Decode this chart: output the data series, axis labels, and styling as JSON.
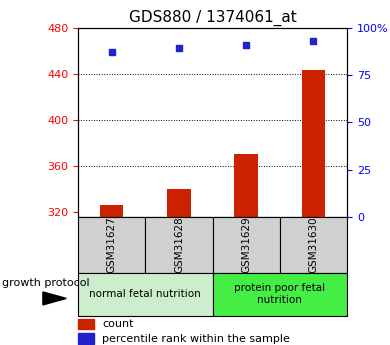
{
  "title": "GDS880 / 1374061_at",
  "samples": [
    "GSM31627",
    "GSM31628",
    "GSM31629",
    "GSM31630"
  ],
  "bar_values": [
    326,
    340,
    370,
    443
  ],
  "scatter_values": [
    87,
    89,
    91,
    93
  ],
  "ylim_left": [
    315,
    480
  ],
  "ylim_right": [
    0,
    100
  ],
  "yticks_left": [
    320,
    360,
    400,
    440,
    480
  ],
  "yticks_right": [
    0,
    25,
    50,
    75,
    100
  ],
  "yticklabels_right": [
    "0",
    "25",
    "50",
    "75",
    "100%"
  ],
  "bar_color": "#cc2200",
  "scatter_color": "#2222cc",
  "bar_bottom": 315,
  "grid_ticks": [
    360,
    400,
    440
  ],
  "group_info": [
    {
      "span": [
        0,
        2
      ],
      "label": "normal fetal nutrition",
      "color": "#cceecc"
    },
    {
      "span": [
        2,
        4
      ],
      "label": "protein poor fetal\nnutrition",
      "color": "#44ee44"
    }
  ],
  "legend_count_label": "count",
  "legend_pct_label": "percentile rank within the sample",
  "growth_protocol_label": "growth protocol",
  "title_fontsize": 11,
  "tick_fontsize": 8,
  "sample_fontsize": 7.5,
  "group_fontsize": 7.5,
  "legend_fontsize": 8,
  "gp_fontsize": 8
}
